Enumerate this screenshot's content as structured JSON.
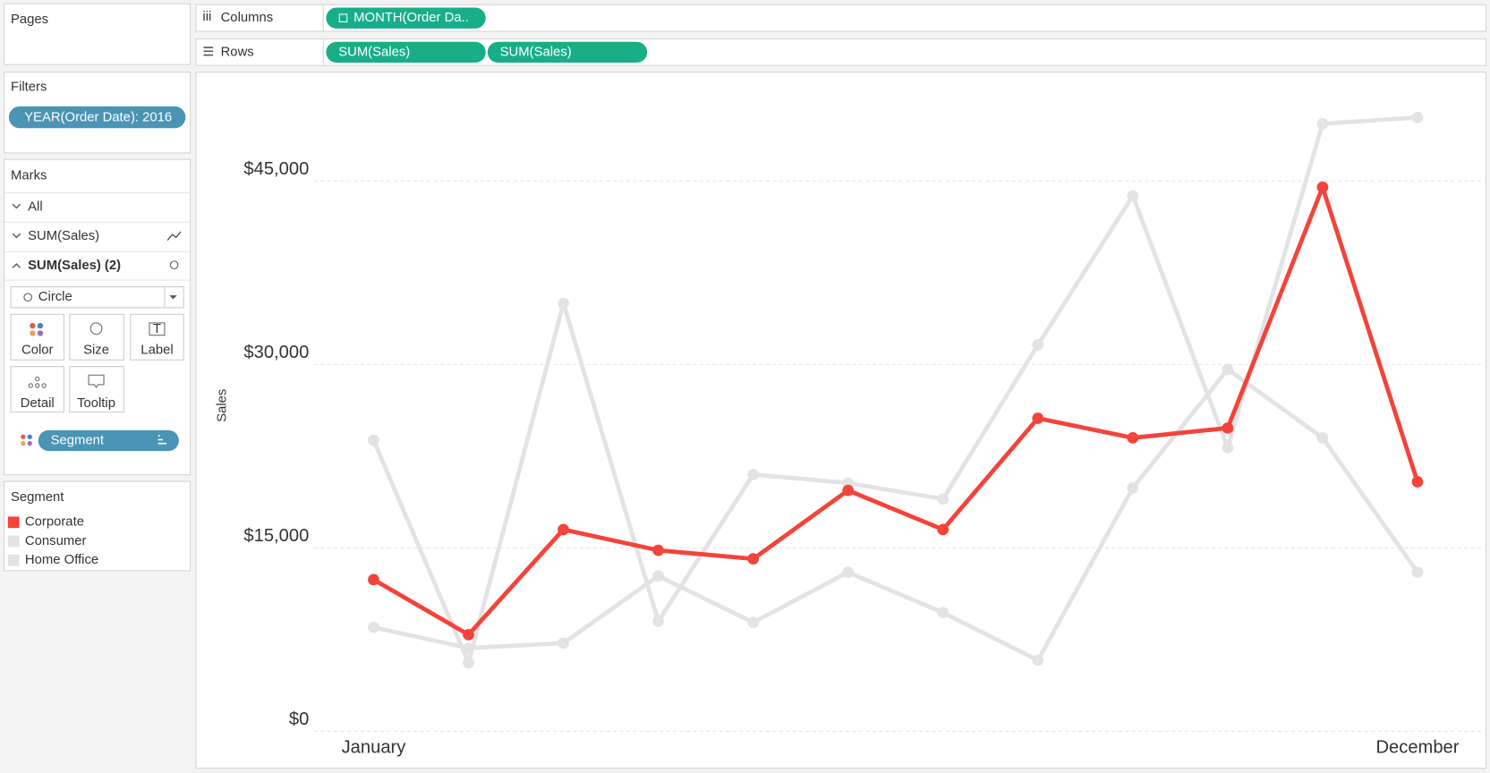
{
  "pages": {
    "title": "Pages"
  },
  "shelves": {
    "columns": {
      "label": "Columns",
      "pills": [
        "MONTH(Order Da.."
      ]
    },
    "rows": {
      "label": "Rows",
      "pills": [
        "SUM(Sales)",
        "SUM(Sales)"
      ]
    }
  },
  "filters": {
    "title": "Filters",
    "pills": [
      "YEAR(Order Date): 2016"
    ]
  },
  "marks": {
    "title": "Marks",
    "cards": [
      "All",
      "SUM(Sales)",
      "SUM(Sales) (2)"
    ],
    "mark_type": "Circle",
    "buttons": [
      "Color",
      "Size",
      "Label",
      "Detail",
      "Tooltip"
    ],
    "pill": "Segment"
  },
  "legend": {
    "title": "Segment"
  },
  "chart_data": {
    "type": "line",
    "y_label": "Sales",
    "categories": [
      "January",
      null,
      null,
      null,
      null,
      null,
      null,
      null,
      null,
      null,
      null,
      "December"
    ],
    "series": [
      {
        "name": "Corporate",
        "color": "#f4433a",
        "values": [
          12400,
          7900,
          16500,
          14800,
          14100,
          19700,
          16500,
          25600,
          24000,
          24800,
          44500,
          20400
        ]
      },
      {
        "name": "Consumer",
        "color": "#e3e3e3",
        "values": [
          23800,
          5600,
          35000,
          9000,
          21000,
          20300,
          19000,
          31600,
          43800,
          23200,
          49700,
          50200
        ]
      },
      {
        "name": "Home Office",
        "color": "#e3e3e3",
        "values": [
          8500,
          6800,
          7200,
          12700,
          8900,
          13000,
          9700,
          5800,
          19900,
          29600,
          24000,
          13000
        ]
      }
    ],
    "ylim": [
      0,
      53600
    ],
    "yticks": [
      {
        "value": 0,
        "label": "$0"
      },
      {
        "value": 15000,
        "label": "$15,000"
      },
      {
        "value": 30000,
        "label": "$30,000"
      },
      {
        "value": 45000,
        "label": "$45,000"
      }
    ],
    "grid": true
  }
}
